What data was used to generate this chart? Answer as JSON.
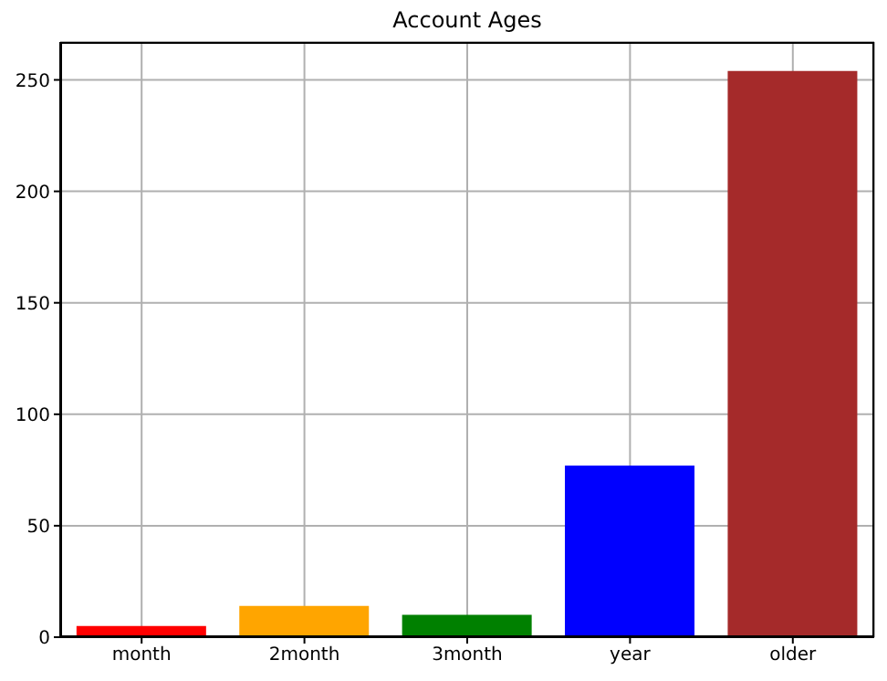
{
  "chart_data": {
    "type": "bar",
    "title": "Account Ages",
    "categories": [
      "month",
      "2month",
      "3month",
      "year",
      "older"
    ],
    "values": [
      5,
      14,
      10,
      77,
      254
    ],
    "colors": [
      "#ff0000",
      "#ffa500",
      "#008000",
      "#0000ff",
      "#a52a2a"
    ],
    "ylim": [
      0,
      267
    ],
    "yticks": [
      0,
      50,
      100,
      150,
      200,
      250
    ],
    "grid": true
  }
}
